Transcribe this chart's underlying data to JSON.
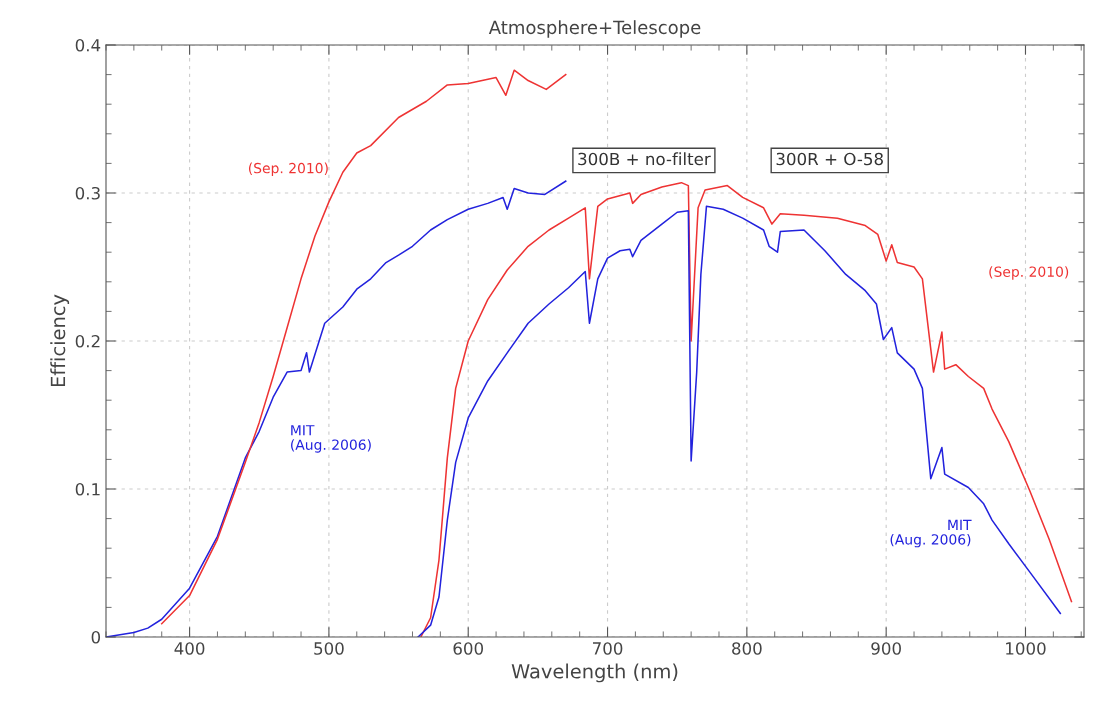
{
  "chart_data": {
    "type": "line",
    "title": "Atmosphere+Telescope",
    "xlabel": "Wavelength (nm)",
    "ylabel": "Efficiency",
    "xlim": [
      340,
      1042
    ],
    "ylim": [
      0,
      0.4
    ],
    "xticks": [
      400,
      500,
      600,
      700,
      800,
      900,
      1000
    ],
    "yticks": [
      0,
      0.1,
      0.2,
      0.3,
      0.4
    ],
    "grid": true,
    "legend": false,
    "marker": "none",
    "line_style": "solid",
    "annotations": [
      "300B + no-filter",
      "300R + O-58"
    ],
    "series": [
      {
        "name": "(Sep. 2010)",
        "color": "#ee3333",
        "x": [
          380,
          400,
          420,
          440,
          450,
          460,
          470,
          480,
          490,
          500,
          510,
          520,
          530,
          550,
          570,
          585,
          600,
          620,
          627,
          633,
          643,
          656,
          670
        ],
        "values": [
          0.009,
          0.028,
          0.066,
          0.118,
          0.145,
          0.176,
          0.209,
          0.242,
          0.271,
          0.294,
          0.314,
          0.327,
          0.332,
          0.351,
          0.362,
          0.373,
          0.374,
          0.378,
          0.366,
          0.383,
          0.376,
          0.37,
          0.38
        ]
      },
      {
        "name": "MIT\n(Aug. 2006)",
        "color": "#2222dd",
        "x": [
          340,
          360,
          370,
          380,
          400,
          420,
          440,
          450,
          460,
          470,
          480,
          484,
          486,
          497,
          510,
          520,
          530,
          541,
          550,
          560,
          573,
          585,
          600,
          614,
          625,
          628,
          633,
          643,
          655,
          670
        ],
        "values": [
          0,
          0.003,
          0.006,
          0.012,
          0.033,
          0.068,
          0.121,
          0.139,
          0.162,
          0.179,
          0.18,
          0.192,
          0.179,
          0.212,
          0.223,
          0.235,
          0.242,
          0.253,
          0.258,
          0.264,
          0.275,
          0.282,
          0.289,
          0.293,
          0.297,
          0.289,
          0.303,
          0.3,
          0.299,
          0.308
        ]
      },
      {
        "name": "(Sep. 2010)",
        "color": "#ee3333",
        "x": [
          566,
          573,
          579,
          585,
          591,
          600,
          614,
          628,
          643,
          658,
          672,
          684,
          687,
          693,
          700,
          716,
          718,
          724,
          739,
          753,
          758,
          760,
          765,
          770,
          786,
          797,
          812,
          818,
          824,
          841,
          865,
          885,
          894,
          900,
          904,
          908,
          920,
          926,
          934,
          940,
          942,
          950,
          959,
          970,
          976,
          988,
          1003,
          1017,
          1033
        ],
        "values": [
          0,
          0.013,
          0.052,
          0.121,
          0.168,
          0.2,
          0.228,
          0.248,
          0.264,
          0.275,
          0.283,
          0.29,
          0.242,
          0.291,
          0.296,
          0.3,
          0.293,
          0.299,
          0.304,
          0.307,
          0.305,
          0.2,
          0.29,
          0.302,
          0.305,
          0.297,
          0.29,
          0.279,
          0.286,
          0.285,
          0.283,
          0.278,
          0.272,
          0.254,
          0.265,
          0.253,
          0.25,
          0.242,
          0.179,
          0.206,
          0.181,
          0.184,
          0.176,
          0.168,
          0.154,
          0.132,
          0.099,
          0.066,
          0.024
        ]
      },
      {
        "name": "MIT\n(Aug. 2006)",
        "color": "#2222dd",
        "x": [
          564,
          573,
          579,
          585,
          591,
          600,
          614,
          628,
          643,
          658,
          672,
          684,
          687,
          693,
          700,
          709,
          716,
          718,
          724,
          739,
          750,
          758,
          760,
          764,
          767,
          771,
          783,
          797,
          812,
          816,
          822,
          824,
          841,
          856,
          871,
          885,
          893,
          898,
          904,
          908,
          920,
          926,
          932,
          940,
          942,
          959,
          970,
          976,
          988,
          1003,
          1025
        ],
        "values": [
          0,
          0.008,
          0.027,
          0.079,
          0.118,
          0.148,
          0.173,
          0.192,
          0.212,
          0.225,
          0.236,
          0.247,
          0.212,
          0.242,
          0.256,
          0.261,
          0.262,
          0.257,
          0.268,
          0.279,
          0.287,
          0.288,
          0.119,
          0.179,
          0.245,
          0.291,
          0.289,
          0.283,
          0.275,
          0.264,
          0.26,
          0.274,
          0.275,
          0.261,
          0.245,
          0.234,
          0.225,
          0.201,
          0.209,
          0.192,
          0.181,
          0.168,
          0.107,
          0.128,
          0.11,
          0.101,
          0.09,
          0.079,
          0.063,
          0.044,
          0.016
        ]
      }
    ]
  }
}
